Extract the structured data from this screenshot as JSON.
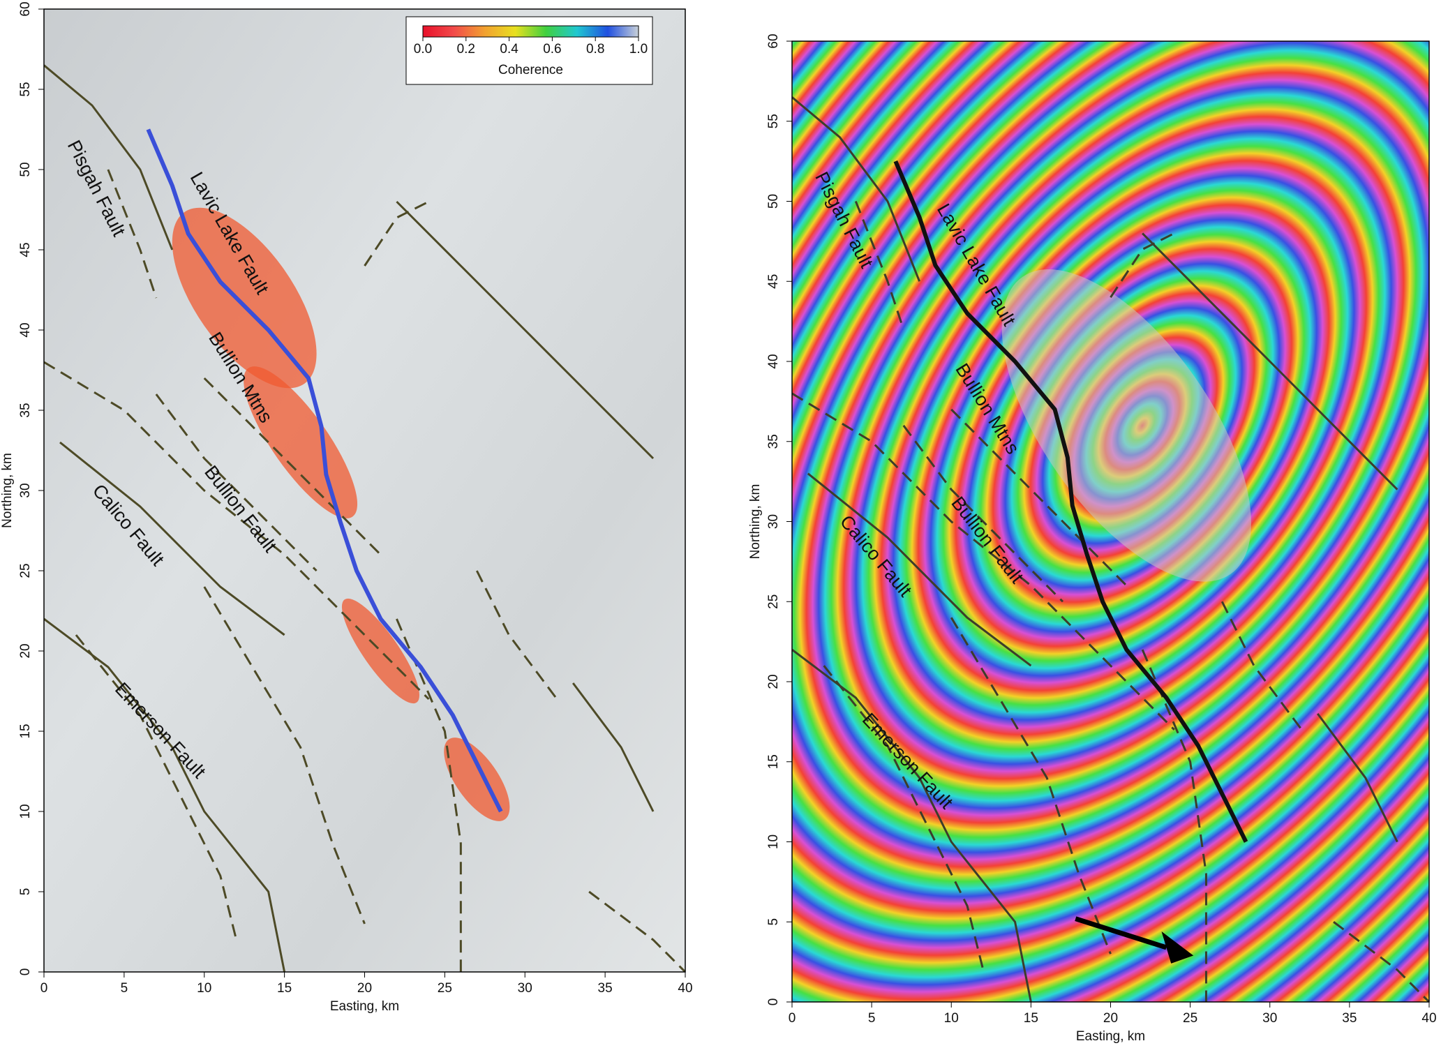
{
  "chart_data": [
    {
      "type": "map",
      "xlabel": "Easting, km",
      "ylabel": "Northing, km",
      "xlim": [
        0,
        40
      ],
      "ylim": [
        0,
        60
      ],
      "xticks": [
        0,
        5,
        10,
        15,
        20,
        25,
        30,
        35,
        40
      ],
      "yticks": [
        0,
        5,
        10,
        15,
        20,
        25,
        30,
        35,
        40,
        45,
        50,
        55,
        60
      ],
      "trace_color": "#3a4fd8",
      "fault_color": "#4d4a26",
      "annotations": [
        "Pisgah Fault",
        "Lavic Lake Fault",
        "Bullion Mtns",
        "Bullion Fault",
        "Calico Fault",
        "Emerson Fault"
      ],
      "colorbar": {
        "label": "Coherence",
        "range": [
          0,
          1
        ],
        "colors": [
          "#e8102a",
          "#f24a4a",
          "#f2a030",
          "#e8e020",
          "#40d040",
          "#20c8d0",
          "#2050e0",
          "#c8d0d8"
        ],
        "ticks": [
          {
            "value": 0,
            "label": "0.0"
          },
          {
            "value": 0.2,
            "label": "0.2"
          },
          {
            "value": 0.4,
            "label": "0.4"
          },
          {
            "value": 0.6,
            "label": "0.6"
          },
          {
            "value": 0.8,
            "label": "0.8"
          },
          {
            "value": 1,
            "label": "1.0"
          }
        ]
      }
    },
    {
      "type": "map",
      "xlabel": "Easting, km",
      "ylabel": "Northing, km",
      "xlim": [
        0,
        40
      ],
      "ylim": [
        0,
        60
      ],
      "xticks": [
        0,
        5,
        10,
        15,
        20,
        25,
        30,
        35,
        40
      ],
      "yticks": [
        0,
        5,
        10,
        15,
        20,
        25,
        30,
        35,
        40,
        45,
        50,
        55,
        60
      ],
      "trace_color": "#111111",
      "fault_color": "#3d3d2a",
      "annotations": [
        "Pisgah Fault",
        "Lavic Lake Fault",
        "Bullion Mtns",
        "Bullion Fault",
        "Calico Fault",
        "Emerson Fault"
      ]
    }
  ]
}
